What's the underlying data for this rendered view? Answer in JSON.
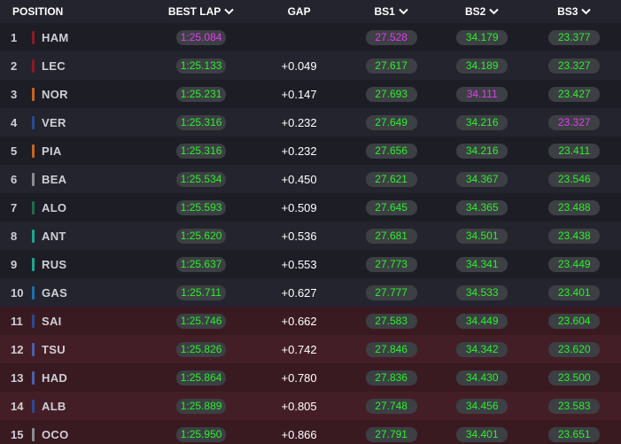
{
  "header": {
    "position": "POSITION",
    "best_lap": "BEST LAP",
    "gap": "GAP",
    "bs1": "BS1",
    "bs2": "BS2",
    "bs3": "BS3"
  },
  "rows": [
    {
      "pos": "1",
      "driver": "HAM",
      "team_color": "#8b1a24",
      "best_lap": "1:25.084",
      "gap": "",
      "bs1": "27.528",
      "bs2": "34.179",
      "bs3": "23.377",
      "best_lap_purple": true,
      "bs1_purple": true,
      "bs2_purple": false,
      "bs3_purple": false,
      "eliminated": false
    },
    {
      "pos": "2",
      "driver": "LEC",
      "team_color": "#8b1a24",
      "best_lap": "1:25.133",
      "gap": "+0.049",
      "bs1": "27.617",
      "bs2": "34.189",
      "bs3": "23.327",
      "best_lap_purple": false,
      "bs1_purple": false,
      "bs2_purple": false,
      "bs3_purple": false,
      "eliminated": false
    },
    {
      "pos": "3",
      "driver": "NOR",
      "team_color": "#c8641e",
      "best_lap": "1:25.231",
      "gap": "+0.147",
      "bs1": "27.693",
      "bs2": "34.111",
      "bs3": "23.427",
      "best_lap_purple": false,
      "bs1_purple": false,
      "bs2_purple": true,
      "bs3_purple": false,
      "eliminated": false
    },
    {
      "pos": "4",
      "driver": "VER",
      "team_color": "#2b4a8e",
      "best_lap": "1:25.316",
      "gap": "+0.232",
      "bs1": "27.649",
      "bs2": "34.216",
      "bs3": "23.327",
      "best_lap_purple": false,
      "bs1_purple": false,
      "bs2_purple": false,
      "bs3_purple": true,
      "eliminated": false
    },
    {
      "pos": "5",
      "driver": "PIA",
      "team_color": "#c8641e",
      "best_lap": "1:25.316",
      "gap": "+0.232",
      "bs1": "27.656",
      "bs2": "34.216",
      "bs3": "23.411",
      "best_lap_purple": false,
      "bs1_purple": false,
      "bs2_purple": false,
      "bs3_purple": false,
      "eliminated": false
    },
    {
      "pos": "6",
      "driver": "BEA",
      "team_color": "#8a8c90",
      "best_lap": "1:25.534",
      "gap": "+0.450",
      "bs1": "27.621",
      "bs2": "34.367",
      "bs3": "23.546",
      "best_lap_purple": false,
      "bs1_purple": false,
      "bs2_purple": false,
      "bs3_purple": false,
      "eliminated": false
    },
    {
      "pos": "7",
      "driver": "ALO",
      "team_color": "#1f6b4f",
      "best_lap": "1:25.593",
      "gap": "+0.509",
      "bs1": "27.645",
      "bs2": "34.365",
      "bs3": "23.488",
      "best_lap_purple": false,
      "bs1_purple": false,
      "bs2_purple": false,
      "bs3_purple": false,
      "eliminated": false
    },
    {
      "pos": "8",
      "driver": "ANT",
      "team_color": "#1fa58f",
      "best_lap": "1:25.620",
      "gap": "+0.536",
      "bs1": "27.681",
      "bs2": "34.501",
      "bs3": "23.438",
      "best_lap_purple": false,
      "bs1_purple": false,
      "bs2_purple": false,
      "bs3_purple": false,
      "eliminated": false
    },
    {
      "pos": "9",
      "driver": "RUS",
      "team_color": "#1fa58f",
      "best_lap": "1:25.637",
      "gap": "+0.553",
      "bs1": "27.773",
      "bs2": "34.341",
      "bs3": "23.449",
      "best_lap_purple": false,
      "bs1_purple": false,
      "bs2_purple": false,
      "bs3_purple": false,
      "eliminated": false
    },
    {
      "pos": "10",
      "driver": "GAS",
      "team_color": "#1f6fa8",
      "best_lap": "1:25.711",
      "gap": "+0.627",
      "bs1": "27.777",
      "bs2": "34.533",
      "bs3": "23.401",
      "best_lap_purple": false,
      "bs1_purple": false,
      "bs2_purple": false,
      "bs3_purple": false,
      "eliminated": false
    },
    {
      "pos": "11",
      "driver": "SAI",
      "team_color": "#2b4a8e",
      "best_lap": "1:25.746",
      "gap": "+0.662",
      "bs1": "27.583",
      "bs2": "34.449",
      "bs3": "23.604",
      "best_lap_purple": false,
      "bs1_purple": false,
      "bs2_purple": false,
      "bs3_purple": false,
      "eliminated": true
    },
    {
      "pos": "12",
      "driver": "TSU",
      "team_color": "#4a5fa8",
      "best_lap": "1:25.826",
      "gap": "+0.742",
      "bs1": "27.846",
      "bs2": "34.342",
      "bs3": "23.620",
      "best_lap_purple": false,
      "bs1_purple": false,
      "bs2_purple": false,
      "bs3_purple": false,
      "eliminated": true
    },
    {
      "pos": "13",
      "driver": "HAD",
      "team_color": "#4a5fa8",
      "best_lap": "1:25.864",
      "gap": "+0.780",
      "bs1": "27.836",
      "bs2": "34.430",
      "bs3": "23.500",
      "best_lap_purple": false,
      "bs1_purple": false,
      "bs2_purple": false,
      "bs3_purple": false,
      "eliminated": true
    },
    {
      "pos": "14",
      "driver": "ALB",
      "team_color": "#2b4a8e",
      "best_lap": "1:25.889",
      "gap": "+0.805",
      "bs1": "27.748",
      "bs2": "34.456",
      "bs3": "23.583",
      "best_lap_purple": false,
      "bs1_purple": false,
      "bs2_purple": false,
      "bs3_purple": false,
      "eliminated": true
    },
    {
      "pos": "15",
      "driver": "OCO",
      "team_color": "#8a8c90",
      "best_lap": "1:25.950",
      "gap": "+0.866",
      "bs1": "27.791",
      "bs2": "34.401",
      "bs3": "23.651",
      "best_lap_purple": false,
      "bs1_purple": false,
      "bs2_purple": false,
      "bs3_purple": false,
      "eliminated": true
    }
  ],
  "colors": {
    "green": "#2cf02c",
    "purple": "#e23cf0",
    "pill_bg": "#3c3f43",
    "eliminated_bg": "#3a1a21"
  },
  "icons": {
    "sort": "chevron-down-icon"
  }
}
